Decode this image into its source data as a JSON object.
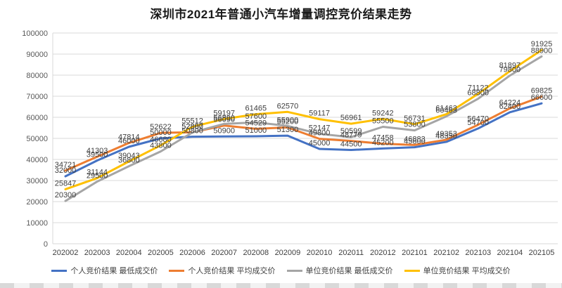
{
  "chart_data": {
    "type": "line",
    "title": "深圳市2021年普通小汽车增量调控竞价结果走势",
    "x": [
      "202002",
      "202003",
      "202004",
      "202005",
      "202006",
      "202007",
      "202008",
      "202009",
      "202010",
      "202011",
      "202012",
      "202101",
      "202102",
      "202103",
      "202104",
      "202105"
    ],
    "series": [
      {
        "name": "个人竞价结果 最低成交价",
        "color": "#4472C4",
        "values": [
          32000,
          39500,
          46000,
          50000,
          50800,
          50900,
          51000,
          51300,
          45000,
          44500,
          45200,
          45800,
          48350,
          54700,
          62400,
          66600
        ]
      },
      {
        "name": "个人竞价结果 平均成交价",
        "color": "#ED7D31",
        "values": [
          34721,
          41303,
          47814,
          52622,
          52887,
          56090,
          54529,
          55200,
          49800,
          48779,
          47458,
          46883,
          49353,
          56470,
          64224,
          69825
        ]
      },
      {
        "name": "单位竞价结果 最低成交价",
        "color": "#A5A5A5",
        "values": [
          20300,
          29500,
          36800,
          43800,
          52800,
          56890,
          57600,
          55900,
          52147,
          50599,
          55500,
          53800,
          60463,
          68800,
          79800,
          88900
        ]
      },
      {
        "name": "单位竞价结果 平均成交价",
        "color": "#FFC000",
        "values": [
          25847,
          31144,
          39043,
          46680,
          55512,
          59197,
          61465,
          62570,
          59117,
          56961,
          59242,
          56731,
          61463,
          71122,
          81897,
          91925
        ]
      }
    ],
    "ylim": [
      0,
      100000
    ],
    "ytick_step": 10000,
    "y_tick_labels": [
      "0",
      "10000",
      "20000",
      "30000",
      "40000",
      "50000",
      "60000",
      "70000",
      "80000",
      "90000",
      "100000"
    ],
    "grid": true,
    "legend_position": "bottom",
    "data_labels": true,
    "colors": {
      "gridline": "#D9D9D9",
      "axis_text": "#595959",
      "x_axis_text": "#404040",
      "data_label_text": "#404040",
      "title_text": "#1a1a1a"
    }
  }
}
